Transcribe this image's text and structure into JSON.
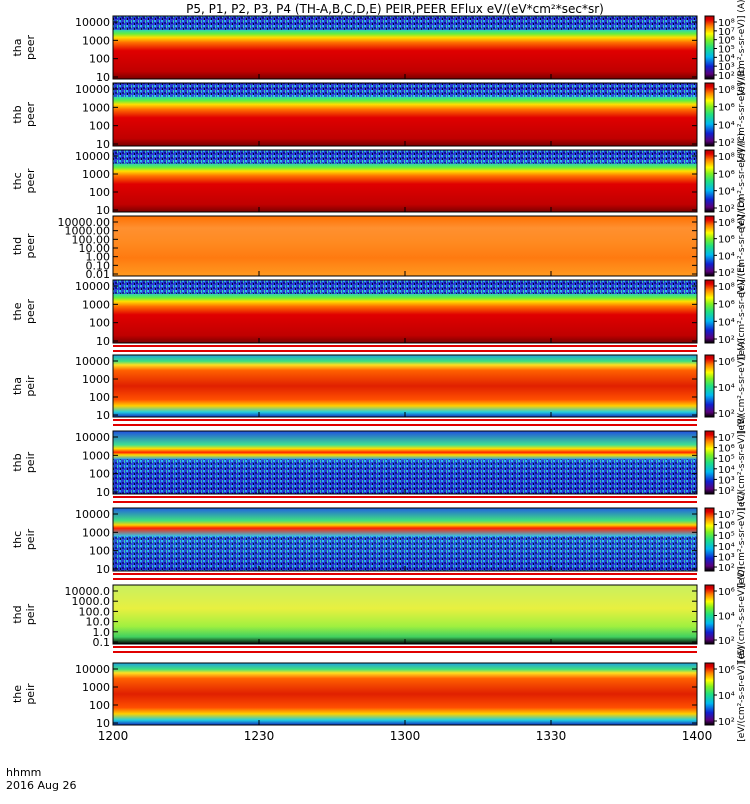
{
  "chart_data": {
    "type": "heatmap",
    "title": "P5, P1, P2, P3, P4 (TH-A,B,C,D,E) PEIR,PEER EFlux eV/(eV*cm²*sec*sr)",
    "x_ticks": [
      "1200",
      "1230",
      "1300",
      "1330",
      "1400"
    ],
    "xlim": [
      "12:00",
      "14:00"
    ],
    "time_label": "hhmm",
    "date_label": "2016 Aug 26",
    "z_scale": "log",
    "colormap": "rainbow (black-purple-blue-cyan-green-yellow-orange-red)",
    "panels": [
      {
        "probe": "tha",
        "product": "peer",
        "y_ticks": [
          "10",
          "100",
          "1000",
          "10000"
        ],
        "cbar_ticks": [
          "10²",
          "10³",
          "10⁴",
          "10⁵",
          "10⁶",
          "10⁷",
          "10⁸"
        ],
        "cbar_unit": "[eV/(cm²-s-sr-eV)] (A)"
      },
      {
        "probe": "thb",
        "product": "peer",
        "y_ticks": [
          "10",
          "100",
          "1000",
          "10000"
        ],
        "cbar_ticks": [
          "10²",
          "10⁴",
          "10⁶",
          "10⁸"
        ],
        "cbar_unit": "[eV/(cm²-s-sr-eV)] (B)"
      },
      {
        "probe": "thc",
        "product": "peer",
        "y_ticks": [
          "10",
          "100",
          "1000",
          "10000"
        ],
        "cbar_ticks": [
          "10²",
          "10⁴",
          "10⁶",
          "10⁸"
        ],
        "cbar_unit": "[eV/(cm²-s-sr-eV)] (C)"
      },
      {
        "probe": "thd",
        "product": "peer",
        "y_ticks": [
          "0.01",
          "0.10",
          "1.00",
          "10.00",
          "100.00",
          "1000.00",
          "10000.00"
        ],
        "cbar_ticks": [
          "10²",
          "10⁴",
          "10⁶",
          "10⁸"
        ],
        "cbar_unit": "[eV/(cm²-s-sr-eV)] (D)"
      },
      {
        "probe": "the",
        "product": "peer",
        "y_ticks": [
          "10",
          "100",
          "1000",
          "10000"
        ],
        "cbar_ticks": [
          "10²",
          "10⁴",
          "10⁶",
          "10⁸"
        ],
        "cbar_unit": "[eV/(cm²-s-sr-eV)] (E)"
      },
      {
        "probe": "tha",
        "product": "peir",
        "y_ticks": [
          "10",
          "100",
          "1000",
          "10000"
        ],
        "cbar_ticks": [
          "10²",
          "10⁴",
          "10⁶"
        ],
        "cbar_unit": "[eV/(cm²-s-sr-eV)] (A)"
      },
      {
        "probe": "thb",
        "product": "peir",
        "y_ticks": [
          "10",
          "100",
          "1000",
          "10000"
        ],
        "cbar_ticks": [
          "10²",
          "10³",
          "10⁴",
          "10⁵",
          "10⁶",
          "10⁷"
        ],
        "cbar_unit": "[eV/(cm²-s-sr-eV)] (B)"
      },
      {
        "probe": "thc",
        "product": "peir",
        "y_ticks": [
          "10",
          "100",
          "1000",
          "10000"
        ],
        "cbar_ticks": [
          "10²",
          "10³",
          "10⁴",
          "10⁵",
          "10⁶",
          "10⁷"
        ],
        "cbar_unit": "[eV/(cm²-s-sr-eV)] (C)"
      },
      {
        "probe": "thd",
        "product": "peir",
        "y_ticks": [
          "0.1",
          "1.0",
          "10.0",
          "100.0",
          "1000.0",
          "10000.0"
        ],
        "cbar_ticks": [
          "10²",
          "10⁴",
          "10⁶"
        ],
        "cbar_unit": "[eV/(cm²-s-sr-eV)] (D)"
      },
      {
        "probe": "the",
        "product": "peir",
        "y_ticks": [
          "10",
          "100",
          "1000",
          "10000"
        ],
        "cbar_ticks": [
          "10²",
          "10⁴",
          "10⁶"
        ],
        "cbar_unit": "[eV/(cm²-s-sr-eV)] (E)"
      }
    ]
  }
}
